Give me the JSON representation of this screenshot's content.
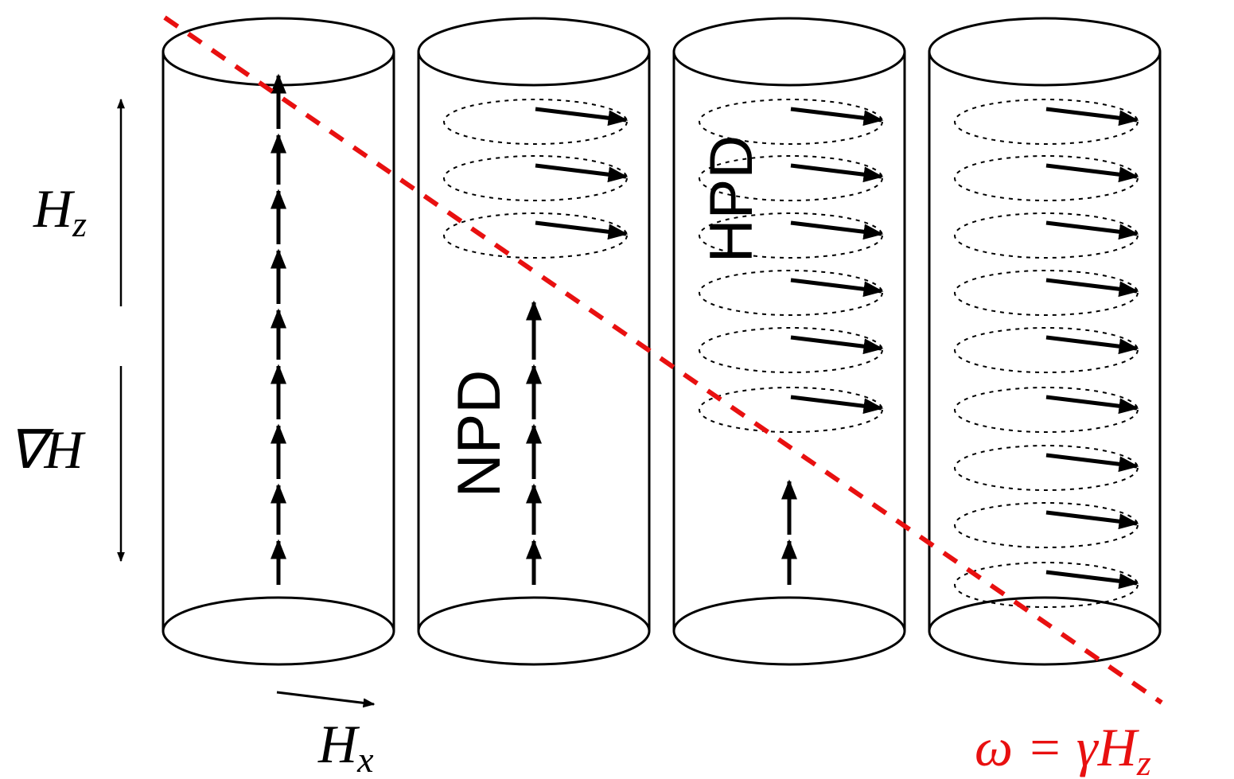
{
  "labels": {
    "hz": {
      "base": "H",
      "sub": "z"
    },
    "grad": "∇H",
    "hx": {
      "base": "H",
      "sub": "x"
    },
    "npd": "NPD",
    "hpd": "HPD",
    "resonance": {
      "base": "ω = γH",
      "sub": "z"
    }
  }
}
